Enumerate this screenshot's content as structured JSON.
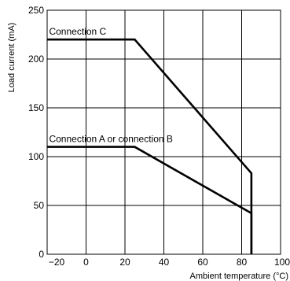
{
  "chart_data": {
    "type": "line",
    "title": "",
    "xlabel": "Ambient temperature (°C)",
    "ylabel": "Load current (mA)",
    "xlim": [
      -20,
      100
    ],
    "ylim": [
      0,
      250
    ],
    "x_ticks": [
      -20,
      0,
      20,
      40,
      60,
      80,
      100
    ],
    "y_ticks": [
      0,
      50,
      100,
      150,
      200,
      250
    ],
    "x_tick_labels": [
      "−20",
      "0",
      "20",
      "40",
      "60",
      "80",
      "100"
    ],
    "y_tick_labels": [
      "0",
      "50",
      "100",
      "150",
      "200",
      "250"
    ],
    "grid": true,
    "series": [
      {
        "name": "Connection C",
        "points": [
          [
            -20,
            220
          ],
          [
            25,
            220
          ],
          [
            85,
            83
          ],
          [
            85,
            0
          ]
        ]
      },
      {
        "name": "Connection A or connection B",
        "points": [
          [
            -20,
            110
          ],
          [
            25,
            110
          ],
          [
            85,
            42
          ],
          [
            85,
            0
          ]
        ]
      }
    ]
  }
}
